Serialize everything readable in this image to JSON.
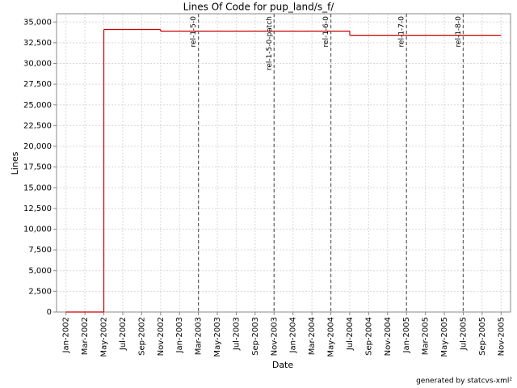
{
  "chart_data": {
    "type": "step",
    "title": "Lines Of Code for pup_land/s_f/",
    "x_label": "Date",
    "y_label": "Lines",
    "footer": "generated by statcvs-xml²",
    "xlim": [
      "2001-12",
      "2005-12"
    ],
    "xticks": [
      {
        "value": "2002-01",
        "label": "Jan-2002"
      },
      {
        "value": "2002-03",
        "label": "Mar-2002"
      },
      {
        "value": "2002-05",
        "label": "May-2002"
      },
      {
        "value": "2002-07",
        "label": "Jul-2002"
      },
      {
        "value": "2002-09",
        "label": "Sep-2002"
      },
      {
        "value": "2002-11",
        "label": "Nov-2002"
      },
      {
        "value": "2003-01",
        "label": "Jan-2003"
      },
      {
        "value": "2003-03",
        "label": "Mar-2003"
      },
      {
        "value": "2003-05",
        "label": "May-2003"
      },
      {
        "value": "2003-07",
        "label": "Jul-2003"
      },
      {
        "value": "2003-09",
        "label": "Sep-2003"
      },
      {
        "value": "2003-11",
        "label": "Nov-2003"
      },
      {
        "value": "2004-01",
        "label": "Jan-2004"
      },
      {
        "value": "2004-03",
        "label": "Mar-2004"
      },
      {
        "value": "2004-05",
        "label": "May-2004"
      },
      {
        "value": "2004-07",
        "label": "Jul-2004"
      },
      {
        "value": "2004-09",
        "label": "Sep-2004"
      },
      {
        "value": "2004-11",
        "label": "Nov-2004"
      },
      {
        "value": "2005-01",
        "label": "Jan-2005"
      },
      {
        "value": "2005-03",
        "label": "Mar-2005"
      },
      {
        "value": "2005-05",
        "label": "May-2005"
      },
      {
        "value": "2005-07",
        "label": "Jul-2005"
      },
      {
        "value": "2005-09",
        "label": "Sep-2005"
      },
      {
        "value": "2005-11",
        "label": "Nov-2005"
      }
    ],
    "ylim": [
      0,
      36000
    ],
    "yticks": [
      0,
      {
        "value": 2500,
        "label": "2,500"
      },
      {
        "value": 5000,
        "label": "5,000"
      },
      {
        "value": 7500,
        "label": "7,500"
      },
      {
        "value": 10000,
        "label": "10,000"
      },
      {
        "value": 12500,
        "label": "12,500"
      },
      {
        "value": 15000,
        "label": "15,000"
      },
      {
        "value": 17500,
        "label": "17,500"
      },
      {
        "value": 20000,
        "label": "20,000"
      },
      {
        "value": 22500,
        "label": "22,500"
      },
      {
        "value": 25000,
        "label": "25,000"
      },
      {
        "value": 27500,
        "label": "27,500"
      },
      {
        "value": 30000,
        "label": "30,000"
      },
      {
        "value": 32500,
        "label": "32,500"
      },
      {
        "value": 35000,
        "label": "35,000"
      }
    ],
    "grid": true,
    "series": [
      {
        "name": "Lines",
        "color": "#cc0000",
        "x": [
          "2002-01",
          "2002-05",
          "2002-11",
          "2004-07",
          "2005-11"
        ],
        "values": [
          0,
          34100,
          33900,
          33400,
          33400
        ]
      }
    ],
    "markers": [
      {
        "x": "2003-03",
        "label": "rel-1-5-0"
      },
      {
        "x": "2003-11",
        "label": "rel-1-5-0-patch"
      },
      {
        "x": "2004-05",
        "label": "rel-1-6-0"
      },
      {
        "x": "2005-01",
        "label": "rel-1-7-0"
      },
      {
        "x": "2005-07",
        "label": "rel-1-8-0"
      }
    ]
  }
}
